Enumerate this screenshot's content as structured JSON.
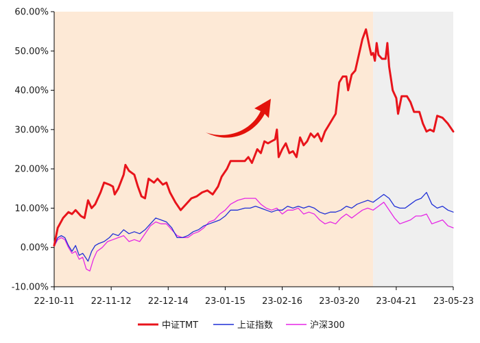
{
  "chart_data": {
    "type": "line",
    "title": "",
    "xlabel": "",
    "ylabel": "",
    "ylim": [
      -10,
      60
    ],
    "yticks": [
      -10,
      0,
      10,
      20,
      30,
      40,
      50,
      60
    ],
    "ytick_labels": [
      "-10.00%",
      "0.00%",
      "10.00%",
      "20.00%",
      "30.00%",
      "40.00%",
      "50.00%",
      "60.00%"
    ],
    "x_start": "2022-10-11",
    "x_end": "2023-05-23",
    "xtick_dates": [
      "2022-10-11",
      "2022-11-12",
      "2022-12-14",
      "2023-01-15",
      "2023-02-16",
      "2023-03-20",
      "2023-04-21",
      "2023-05-23"
    ],
    "xtick_labels": [
      "22-10-11",
      "22-11-12",
      "22-12-14",
      "23-01-15",
      "23-02-16",
      "23-03-20",
      "23-04-21",
      "23-05-23"
    ],
    "grid": false,
    "legend_position": "bottom-center",
    "shaded_regions": [
      {
        "from": "2022-10-11",
        "to": "2023-04-08",
        "color": "#fde9d6"
      },
      {
        "from": "2023-04-08",
        "to": "2023-05-23",
        "color": "#efefef"
      }
    ],
    "annotation_arrow": {
      "color": "#e3120b",
      "direction": "up-right"
    },
    "series": [
      {
        "name": "中证TMT",
        "color": "#e8141b",
        "width": 3,
        "points": [
          [
            "2022-10-11",
            0.5
          ],
          [
            "2022-10-13",
            5
          ],
          [
            "2022-10-16",
            7.5
          ],
          [
            "2022-10-19",
            9
          ],
          [
            "2022-10-21",
            8.5
          ],
          [
            "2022-10-23",
            9.5
          ],
          [
            "2022-10-26",
            8
          ],
          [
            "2022-10-28",
            7.5
          ],
          [
            "2022-10-30",
            12
          ],
          [
            "2022-11-01",
            10
          ],
          [
            "2022-11-03",
            11
          ],
          [
            "2022-11-06",
            14
          ],
          [
            "2022-11-08",
            16.5
          ],
          [
            "2022-11-11",
            16
          ],
          [
            "2022-11-13",
            15.5
          ],
          [
            "2022-11-14",
            13.5
          ],
          [
            "2022-11-16",
            15
          ],
          [
            "2022-11-19",
            18.5
          ],
          [
            "2022-11-20",
            21
          ],
          [
            "2022-11-22",
            19.5
          ],
          [
            "2022-11-25",
            18.5
          ],
          [
            "2022-11-27",
            15.5
          ],
          [
            "2022-11-29",
            13
          ],
          [
            "2022-12-01",
            12.5
          ],
          [
            "2022-12-03",
            17.5
          ],
          [
            "2022-12-06",
            16.5
          ],
          [
            "2022-12-08",
            17.5
          ],
          [
            "2022-12-11",
            16
          ],
          [
            "2022-12-13",
            16.5
          ],
          [
            "2022-12-15",
            14
          ],
          [
            "2022-12-18",
            11.5
          ],
          [
            "2022-12-21",
            9.5
          ],
          [
            "2022-12-24",
            11
          ],
          [
            "2022-12-27",
            12.5
          ],
          [
            "2022-12-30",
            13
          ],
          [
            "2023-01-02",
            14
          ],
          [
            "2023-01-05",
            14.5
          ],
          [
            "2023-01-08",
            13.5
          ],
          [
            "2023-01-11",
            15.5
          ],
          [
            "2023-01-13",
            18
          ],
          [
            "2023-01-16",
            20
          ],
          [
            "2023-01-18",
            22
          ],
          [
            "2023-01-23",
            22
          ],
          [
            "2023-01-26",
            22
          ],
          [
            "2023-01-28",
            23
          ],
          [
            "2023-01-30",
            21.5
          ],
          [
            "2023-02-02",
            25
          ],
          [
            "2023-02-04",
            24
          ],
          [
            "2023-02-06",
            27
          ],
          [
            "2023-02-08",
            26.5
          ],
          [
            "2023-02-10",
            27
          ],
          [
            "2023-02-12",
            27.5
          ],
          [
            "2023-02-13",
            30
          ],
          [
            "2023-02-14",
            23
          ],
          [
            "2023-02-16",
            25
          ],
          [
            "2023-02-18",
            26.5
          ],
          [
            "2023-02-20",
            24
          ],
          [
            "2023-02-22",
            24.5
          ],
          [
            "2023-02-24",
            23
          ],
          [
            "2023-02-26",
            28
          ],
          [
            "2023-02-28",
            26
          ],
          [
            "2023-03-02",
            27
          ],
          [
            "2023-03-04",
            29
          ],
          [
            "2023-03-06",
            28
          ],
          [
            "2023-03-08",
            29
          ],
          [
            "2023-03-10",
            27
          ],
          [
            "2023-03-12",
            29.5
          ],
          [
            "2023-03-14",
            31
          ],
          [
            "2023-03-16",
            32.5
          ],
          [
            "2023-03-18",
            34
          ],
          [
            "2023-03-20",
            42
          ],
          [
            "2023-03-22",
            43.5
          ],
          [
            "2023-03-24",
            43.5
          ],
          [
            "2023-03-25",
            40
          ],
          [
            "2023-03-27",
            44
          ],
          [
            "2023-03-29",
            45
          ],
          [
            "2023-03-31",
            49
          ],
          [
            "2023-04-02",
            53
          ],
          [
            "2023-04-04",
            55.5
          ],
          [
            "2023-04-06",
            51
          ],
          [
            "2023-04-07",
            49
          ],
          [
            "2023-04-08",
            49.5
          ],
          [
            "2023-04-09",
            47.5
          ],
          [
            "2023-04-10",
            52
          ],
          [
            "2023-04-11",
            49
          ],
          [
            "2023-04-13",
            48
          ],
          [
            "2023-04-15",
            48
          ],
          [
            "2023-04-16",
            52
          ],
          [
            "2023-04-17",
            46
          ],
          [
            "2023-04-19",
            40
          ],
          [
            "2023-04-21",
            38
          ],
          [
            "2023-04-22",
            34
          ],
          [
            "2023-04-24",
            38.5
          ],
          [
            "2023-04-27",
            38.5
          ],
          [
            "2023-04-29",
            37
          ],
          [
            "2023-05-01",
            34.5
          ],
          [
            "2023-05-04",
            34.5
          ],
          [
            "2023-05-06",
            31.5
          ],
          [
            "2023-05-08",
            29.5
          ],
          [
            "2023-05-10",
            30
          ],
          [
            "2023-05-12",
            29.5
          ],
          [
            "2023-05-14",
            33.5
          ],
          [
            "2023-05-17",
            33
          ],
          [
            "2023-05-20",
            31.5
          ],
          [
            "2023-05-23",
            29.5
          ]
        ]
      },
      {
        "name": "上证指数",
        "color": "#1f2fd6",
        "width": 1.3,
        "points": [
          [
            "2022-10-11",
            0.3
          ],
          [
            "2022-10-13",
            2.5
          ],
          [
            "2022-10-15",
            3
          ],
          [
            "2022-10-17",
            2.5
          ],
          [
            "2022-10-19",
            0.5
          ],
          [
            "2022-10-21",
            -1
          ],
          [
            "2022-10-23",
            0.5
          ],
          [
            "2022-10-25",
            -2
          ],
          [
            "2022-10-27",
            -1.5
          ],
          [
            "2022-10-30",
            -3.5
          ],
          [
            "2022-11-01",
            -1
          ],
          [
            "2022-11-03",
            0.5
          ],
          [
            "2022-11-05",
            1
          ],
          [
            "2022-11-08",
            1.5
          ],
          [
            "2022-11-11",
            2.5
          ],
          [
            "2022-11-13",
            3.5
          ],
          [
            "2022-11-16",
            3
          ],
          [
            "2022-11-19",
            4.5
          ],
          [
            "2022-11-22",
            3.5
          ],
          [
            "2022-11-25",
            4
          ],
          [
            "2022-11-28",
            3.5
          ],
          [
            "2022-12-01",
            4.5
          ],
          [
            "2022-12-04",
            6
          ],
          [
            "2022-12-07",
            7.5
          ],
          [
            "2022-12-10",
            7
          ],
          [
            "2022-12-13",
            6.5
          ],
          [
            "2022-12-16",
            5
          ],
          [
            "2022-12-19",
            2.5
          ],
          [
            "2022-12-22",
            2.5
          ],
          [
            "2022-12-25",
            3
          ],
          [
            "2022-12-28",
            4
          ],
          [
            "2022-12-31",
            4.5
          ],
          [
            "2023-01-03",
            5.5
          ],
          [
            "2023-01-06",
            6
          ],
          [
            "2023-01-09",
            6.5
          ],
          [
            "2023-01-12",
            7
          ],
          [
            "2023-01-15",
            8
          ],
          [
            "2023-01-18",
            9.5
          ],
          [
            "2023-01-22",
            9.5
          ],
          [
            "2023-01-26",
            10
          ],
          [
            "2023-01-29",
            10
          ],
          [
            "2023-02-01",
            10.5
          ],
          [
            "2023-02-04",
            10
          ],
          [
            "2023-02-07",
            9.5
          ],
          [
            "2023-02-10",
            9
          ],
          [
            "2023-02-13",
            9.5
          ],
          [
            "2023-02-16",
            9.5
          ],
          [
            "2023-02-19",
            10.5
          ],
          [
            "2023-02-22",
            10
          ],
          [
            "2023-02-25",
            10.5
          ],
          [
            "2023-02-28",
            10
          ],
          [
            "2023-03-03",
            10.5
          ],
          [
            "2023-03-06",
            10
          ],
          [
            "2023-03-09",
            9
          ],
          [
            "2023-03-12",
            8.5
          ],
          [
            "2023-03-15",
            9
          ],
          [
            "2023-03-18",
            9
          ],
          [
            "2023-03-21",
            9.5
          ],
          [
            "2023-03-24",
            10.5
          ],
          [
            "2023-03-27",
            10
          ],
          [
            "2023-03-30",
            11
          ],
          [
            "2023-04-02",
            11.5
          ],
          [
            "2023-04-05",
            12
          ],
          [
            "2023-04-08",
            11.5
          ],
          [
            "2023-04-11",
            12.5
          ],
          [
            "2023-04-14",
            13.5
          ],
          [
            "2023-04-17",
            12.5
          ],
          [
            "2023-04-20",
            10.5
          ],
          [
            "2023-04-23",
            10
          ],
          [
            "2023-04-26",
            10
          ],
          [
            "2023-04-29",
            11
          ],
          [
            "2023-05-02",
            12
          ],
          [
            "2023-05-05",
            12.5
          ],
          [
            "2023-05-08",
            14
          ],
          [
            "2023-05-11",
            11
          ],
          [
            "2023-05-14",
            10
          ],
          [
            "2023-05-17",
            10.5
          ],
          [
            "2023-05-20",
            9.5
          ],
          [
            "2023-05-23",
            9
          ]
        ]
      },
      {
        "name": "沪深300",
        "color": "#e526e5",
        "width": 1.3,
        "points": [
          [
            "2022-10-11",
            0.3
          ],
          [
            "2022-10-13",
            2
          ],
          [
            "2022-10-15",
            2.5
          ],
          [
            "2022-10-17",
            2
          ],
          [
            "2022-10-19",
            0
          ],
          [
            "2022-10-21",
            -1.5
          ],
          [
            "2022-10-23",
            -1
          ],
          [
            "2022-10-25",
            -3
          ],
          [
            "2022-10-27",
            -2.5
          ],
          [
            "2022-10-29",
            -5.5
          ],
          [
            "2022-10-31",
            -6
          ],
          [
            "2022-11-02",
            -3
          ],
          [
            "2022-11-04",
            -1
          ],
          [
            "2022-11-07",
            0
          ],
          [
            "2022-11-10",
            1.5
          ],
          [
            "2022-11-13",
            2
          ],
          [
            "2022-11-16",
            2.5
          ],
          [
            "2022-11-19",
            3
          ],
          [
            "2022-11-22",
            1.5
          ],
          [
            "2022-11-25",
            2
          ],
          [
            "2022-11-28",
            1.5
          ],
          [
            "2022-12-01",
            3.5
          ],
          [
            "2022-12-04",
            5.5
          ],
          [
            "2022-12-07",
            6.5
          ],
          [
            "2022-12-10",
            6
          ],
          [
            "2022-12-13",
            6
          ],
          [
            "2022-12-16",
            4.5
          ],
          [
            "2022-12-19",
            3
          ],
          [
            "2022-12-22",
            2.5
          ],
          [
            "2022-12-25",
            2.5
          ],
          [
            "2022-12-28",
            3.5
          ],
          [
            "2022-12-31",
            4
          ],
          [
            "2023-01-03",
            5
          ],
          [
            "2023-01-06",
            6.5
          ],
          [
            "2023-01-09",
            7
          ],
          [
            "2023-01-12",
            8.5
          ],
          [
            "2023-01-15",
            9.5
          ],
          [
            "2023-01-18",
            11
          ],
          [
            "2023-01-22",
            12
          ],
          [
            "2023-01-26",
            12.5
          ],
          [
            "2023-01-29",
            12.5
          ],
          [
            "2023-02-01",
            12.5
          ],
          [
            "2023-02-04",
            11
          ],
          [
            "2023-02-07",
            10
          ],
          [
            "2023-02-10",
            9.5
          ],
          [
            "2023-02-13",
            10
          ],
          [
            "2023-02-16",
            8.5
          ],
          [
            "2023-02-19",
            9.5
          ],
          [
            "2023-02-22",
            9.5
          ],
          [
            "2023-02-25",
            10
          ],
          [
            "2023-02-28",
            8.5
          ],
          [
            "2023-03-03",
            9
          ],
          [
            "2023-03-06",
            8.5
          ],
          [
            "2023-03-09",
            7
          ],
          [
            "2023-03-12",
            6
          ],
          [
            "2023-03-15",
            6.5
          ],
          [
            "2023-03-18",
            6
          ],
          [
            "2023-03-21",
            7.5
          ],
          [
            "2023-03-24",
            8.5
          ],
          [
            "2023-03-27",
            7.5
          ],
          [
            "2023-03-30",
            8.5
          ],
          [
            "2023-04-02",
            9.5
          ],
          [
            "2023-04-05",
            10
          ],
          [
            "2023-04-08",
            9.5
          ],
          [
            "2023-04-11",
            10.5
          ],
          [
            "2023-04-14",
            11.5
          ],
          [
            "2023-04-17",
            9.5
          ],
          [
            "2023-04-20",
            7.5
          ],
          [
            "2023-04-23",
            6
          ],
          [
            "2023-04-26",
            6.5
          ],
          [
            "2023-04-29",
            7
          ],
          [
            "2023-05-02",
            8
          ],
          [
            "2023-05-05",
            8
          ],
          [
            "2023-05-08",
            8.5
          ],
          [
            "2023-05-11",
            6
          ],
          [
            "2023-05-14",
            6.5
          ],
          [
            "2023-05-17",
            7
          ],
          [
            "2023-05-20",
            5.5
          ],
          [
            "2023-05-23",
            5
          ]
        ]
      }
    ]
  }
}
